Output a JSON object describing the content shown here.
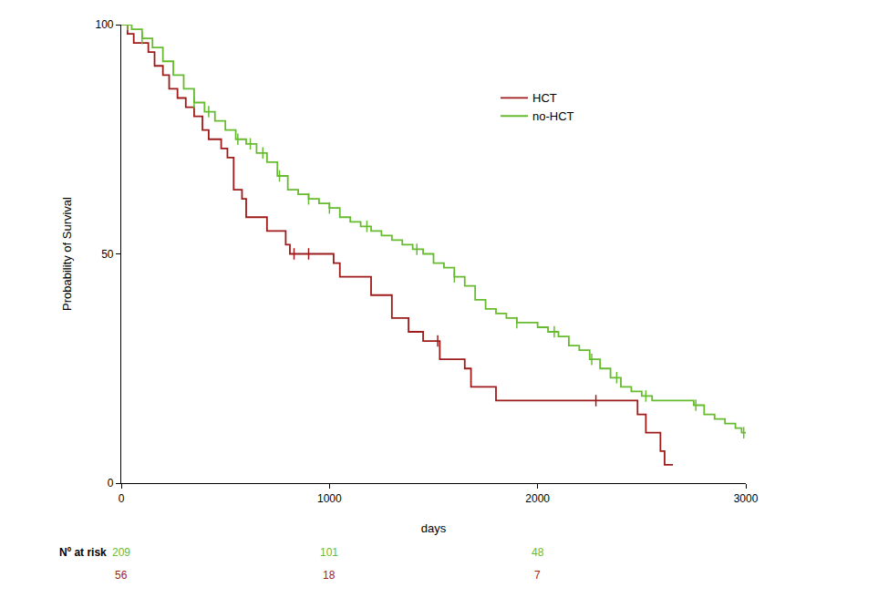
{
  "chart_data": {
    "type": "step",
    "x_label": "days",
    "y_label": "Probability of Survival",
    "xlim": [
      0,
      3000
    ],
    "xticks": [
      0,
      1000,
      2000,
      3000
    ],
    "ylim": [
      0,
      100
    ],
    "yticks": [
      0,
      50,
      100
    ],
    "grid": false,
    "legend": "top",
    "marker": "tick",
    "line_style": "solid",
    "series": [
      {
        "name": "HCT",
        "color": "#9e1b1b",
        "x": [
          0,
          30,
          60,
          130,
          160,
          200,
          230,
          270,
          310,
          350,
          390,
          420,
          480,
          510,
          540,
          580,
          600,
          700,
          790,
          810,
          1020,
          1050,
          1200,
          1300,
          1380,
          1450,
          1530,
          1650,
          1680,
          1800,
          2480,
          2520,
          2590,
          2610,
          2650
        ],
        "values": [
          100,
          98,
          96,
          94,
          91,
          89,
          86,
          84,
          82,
          80,
          77,
          75,
          73,
          71,
          64,
          62,
          58,
          55,
          52,
          50,
          48,
          45,
          41,
          36,
          33,
          31,
          27,
          25,
          21,
          18,
          15,
          11,
          7,
          4,
          4
        ],
        "censored": [
          830,
          900,
          1520,
          2280
        ]
      },
      {
        "name": "no-HCT",
        "color": "#66bb2e",
        "x": [
          0,
          50,
          100,
          150,
          200,
          250,
          300,
          350,
          400,
          450,
          500,
          550,
          600,
          650,
          700,
          750,
          800,
          850,
          900,
          950,
          1000,
          1050,
          1100,
          1150,
          1200,
          1250,
          1300,
          1350,
          1400,
          1450,
          1500,
          1550,
          1600,
          1650,
          1700,
          1750,
          1800,
          1850,
          1900,
          1950,
          2000,
          2050,
          2100,
          2150,
          2200,
          2250,
          2300,
          2350,
          2400,
          2450,
          2500,
          2550,
          2600,
          2700,
          2750,
          2800,
          2850,
          2900,
          2950,
          2980,
          3000
        ],
        "values": [
          100,
          99,
          97,
          95,
          92,
          89,
          86,
          83,
          81,
          79,
          77,
          75,
          74,
          72,
          70,
          67,
          64,
          63,
          62,
          61,
          60,
          58,
          57,
          56,
          55,
          54,
          53,
          52,
          51,
          50,
          48,
          47,
          45,
          43,
          40,
          38,
          37,
          36,
          35,
          35,
          34,
          33,
          32,
          30,
          29,
          27,
          25,
          23,
          21,
          20,
          19,
          18,
          18,
          18,
          17,
          15,
          14,
          13,
          12,
          11,
          11
        ],
        "censored": [
          30,
          100,
          350,
          420,
          560,
          620,
          680,
          760,
          900,
          1000,
          1180,
          1420,
          1600,
          1900,
          2080,
          2260,
          2380,
          2520,
          2760,
          2990
        ]
      }
    ],
    "at_risk": {
      "label": "Nº at risk",
      "x": [
        0,
        1000,
        2000
      ],
      "rows": [
        {
          "name": "no-HCT",
          "values": [
            209,
            101,
            48
          ]
        },
        {
          "name": "HCT",
          "values": [
            56,
            18,
            7
          ]
        }
      ]
    }
  }
}
